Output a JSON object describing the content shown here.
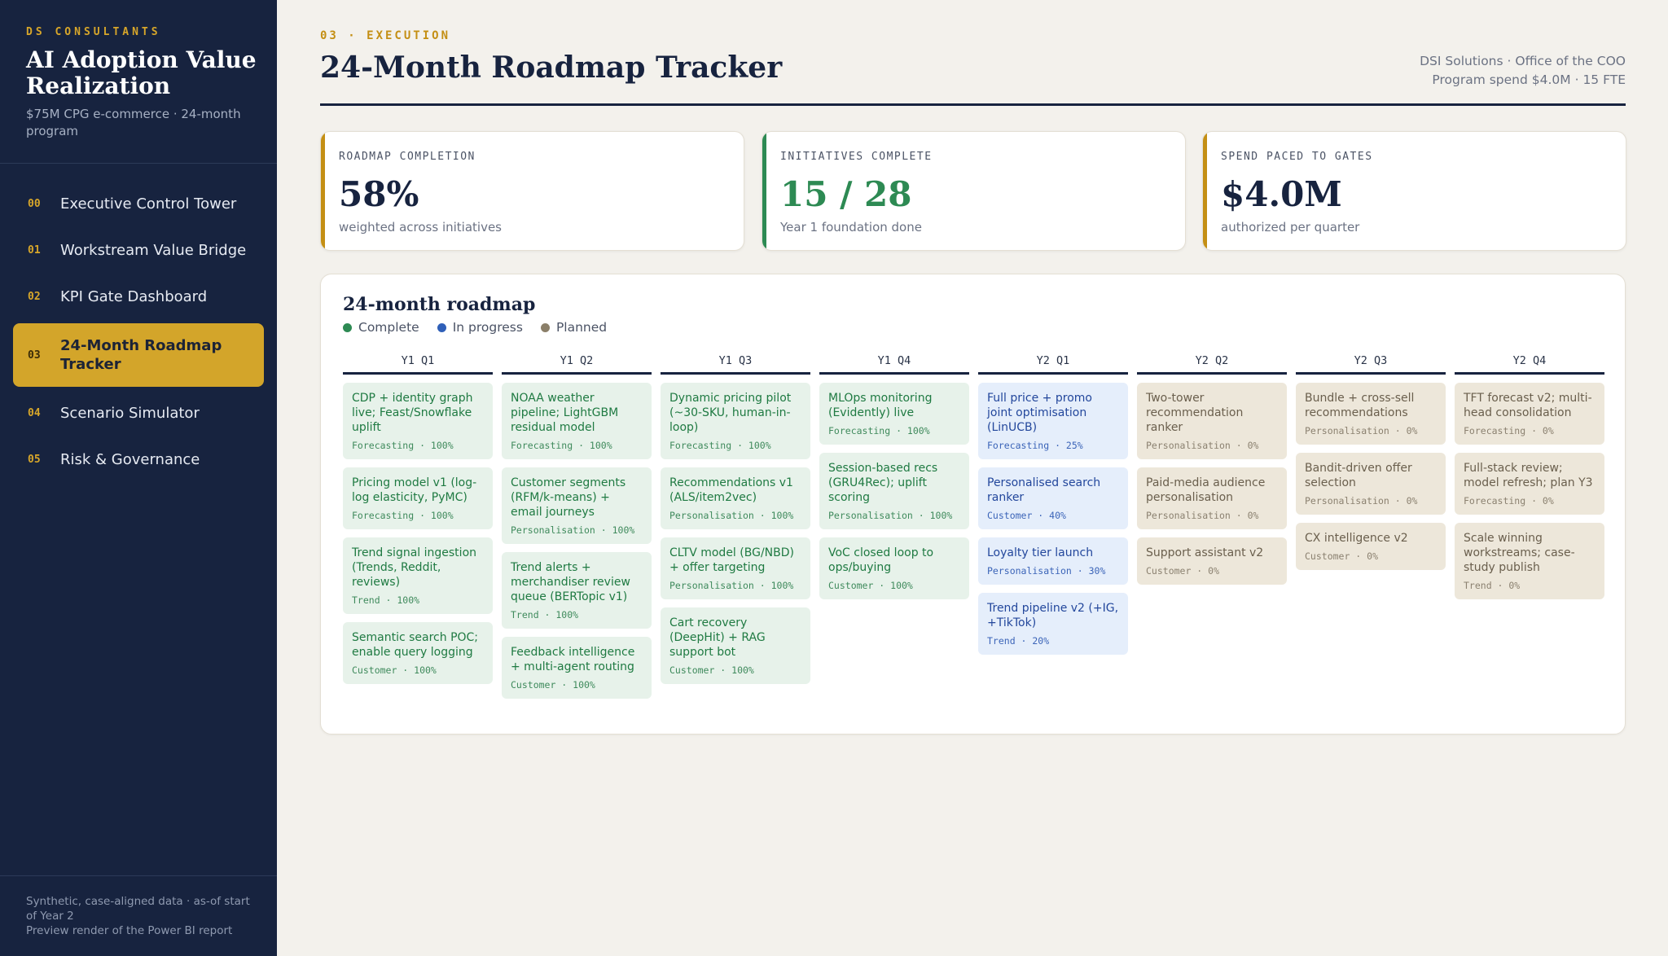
{
  "sidebar": {
    "kicker": "DS CONSULTANTS",
    "title": "AI Adoption Value Realization",
    "subtitle": "$75M CPG e-commerce · 24-month program",
    "nav": [
      {
        "num": "00",
        "label": "Executive Control Tower"
      },
      {
        "num": "01",
        "label": "Workstream Value Bridge"
      },
      {
        "num": "02",
        "label": "KPI Gate Dashboard"
      },
      {
        "num": "03",
        "label": "24-Month Roadmap Tracker",
        "active": true
      },
      {
        "num": "04",
        "label": "Scenario Simulator"
      },
      {
        "num": "05",
        "label": "Risk & Governance"
      }
    ],
    "footer_line1": "Synthetic, case-aligned data · as-of start of Year 2",
    "footer_line2": "Preview render of the Power BI report"
  },
  "header": {
    "kicker": "03 · EXECUTION",
    "title": "24-Month Roadmap Tracker",
    "meta_line1": "DSI Solutions · Office of the COO",
    "meta_line2": "Program spend $4.0M · 15 FTE"
  },
  "kpis": [
    {
      "label": "ROADMAP COMPLETION",
      "value": "58%",
      "sub": "weighted across initiatives",
      "accent": "#c48f14",
      "value_color": "#17233f"
    },
    {
      "label": "INITIATIVES COMPLETE",
      "value": "15 / 28",
      "sub": "Year 1 foundation done",
      "accent": "#2d8a53",
      "value_color": "#2d8a53"
    },
    {
      "label": "SPEND PACED TO GATES",
      "value": "$4.0M",
      "sub": "authorized per quarter",
      "accent": "#c48f14",
      "value_color": "#17233f"
    }
  ],
  "roadmap": {
    "title": "24-month roadmap",
    "legend": [
      {
        "label": "Complete",
        "color": "#2d8a53"
      },
      {
        "label": "In progress",
        "color": "#2f5fb8"
      },
      {
        "label": "Planned",
        "color": "#8b7f69"
      }
    ],
    "columns": [
      {
        "label": "Y1 Q1",
        "cards": [
          {
            "title": "CDP + identity graph live; Feast/Snowflake uplift",
            "meta": "Forecasting · 100%",
            "status": "complete"
          },
          {
            "title": "Pricing model v1 (log-log elasticity, PyMC)",
            "meta": "Forecasting · 100%",
            "status": "complete"
          },
          {
            "title": "Trend signal ingestion (Trends, Reddit, reviews)",
            "meta": "Trend · 100%",
            "status": "complete"
          },
          {
            "title": "Semantic search POC; enable query logging",
            "meta": "Customer · 100%",
            "status": "complete"
          }
        ]
      },
      {
        "label": "Y1 Q2",
        "cards": [
          {
            "title": "NOAA weather pipeline; LightGBM residual model",
            "meta": "Forecasting · 100%",
            "status": "complete"
          },
          {
            "title": "Customer segments (RFM/k-means) + email journeys",
            "meta": "Personalisation · 100%",
            "status": "complete"
          },
          {
            "title": "Trend alerts + merchandiser review queue (BERTopic v1)",
            "meta": "Trend · 100%",
            "status": "complete"
          },
          {
            "title": "Feedback intelligence + multi-agent routing",
            "meta": "Customer · 100%",
            "status": "complete"
          }
        ]
      },
      {
        "label": "Y1 Q3",
        "cards": [
          {
            "title": "Dynamic pricing pilot (~30-SKU, human-in-loop)",
            "meta": "Forecasting · 100%",
            "status": "complete"
          },
          {
            "title": "Recommendations v1 (ALS/item2vec)",
            "meta": "Personalisation · 100%",
            "status": "complete"
          },
          {
            "title": "CLTV model (BG/NBD) + offer targeting",
            "meta": "Personalisation · 100%",
            "status": "complete"
          },
          {
            "title": "Cart recovery (DeepHit) + RAG support bot",
            "meta": "Customer · 100%",
            "status": "complete"
          }
        ]
      },
      {
        "label": "Y1 Q4",
        "cards": [
          {
            "title": "MLOps monitoring (Evidently) live",
            "meta": "Forecasting · 100%",
            "status": "complete"
          },
          {
            "title": "Session-based recs (GRU4Rec); uplift scoring",
            "meta": "Personalisation · 100%",
            "status": "complete"
          },
          {
            "title": "VoC closed loop to ops/buying",
            "meta": "Customer · 100%",
            "status": "complete"
          }
        ]
      },
      {
        "label": "Y2 Q1",
        "cards": [
          {
            "title": "Full price + promo joint optimisation (LinUCB)",
            "meta": "Forecasting · 25%",
            "status": "progress"
          },
          {
            "title": "Personalised search ranker",
            "meta": "Customer · 40%",
            "status": "progress"
          },
          {
            "title": "Loyalty tier launch",
            "meta": "Personalisation · 30%",
            "status": "progress"
          },
          {
            "title": "Trend pipeline v2 (+IG, +TikTok)",
            "meta": "Trend · 20%",
            "status": "progress"
          }
        ]
      },
      {
        "label": "Y2 Q2",
        "cards": [
          {
            "title": "Two-tower recommendation ranker",
            "meta": "Personalisation · 0%",
            "status": "planned"
          },
          {
            "title": "Paid-media audience personalisation",
            "meta": "Personalisation · 0%",
            "status": "planned"
          },
          {
            "title": "Support assistant v2",
            "meta": "Customer · 0%",
            "status": "planned"
          }
        ]
      },
      {
        "label": "Y2 Q3",
        "cards": [
          {
            "title": "Bundle + cross-sell recommendations",
            "meta": "Personalisation · 0%",
            "status": "planned"
          },
          {
            "title": "Bandit-driven offer selection",
            "meta": "Personalisation · 0%",
            "status": "planned"
          },
          {
            "title": "CX intelligence v2",
            "meta": "Customer · 0%",
            "status": "planned"
          }
        ]
      },
      {
        "label": "Y2 Q4",
        "cards": [
          {
            "title": "TFT forecast v2; multi-head consolidation",
            "meta": "Forecasting · 0%",
            "status": "planned"
          },
          {
            "title": "Full-stack review; model refresh; plan Y3",
            "meta": "Forecasting · 0%",
            "status": "planned"
          },
          {
            "title": "Scale winning workstreams; case-study publish",
            "meta": "Trend · 0%",
            "status": "planned"
          }
        ]
      }
    ]
  }
}
